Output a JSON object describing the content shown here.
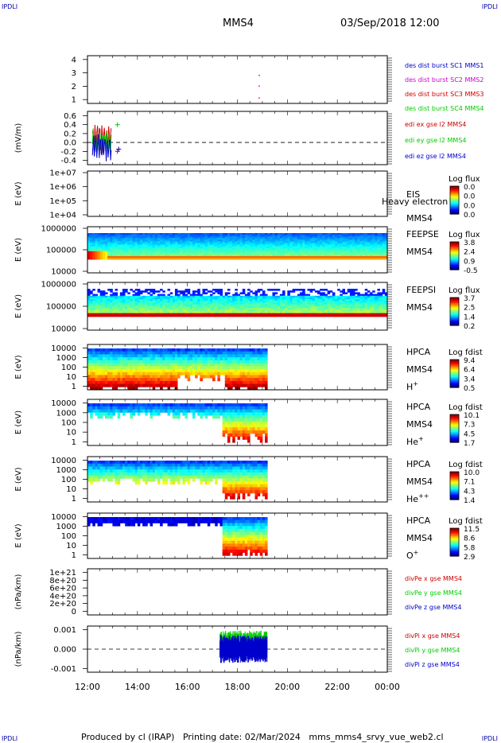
{
  "corner_left": "IPDLI",
  "corner_right": "IPDLI",
  "header": {
    "title": "MMS4",
    "datetime": "03/Sep/2018 12:00"
  },
  "footer": {
    "text": "Produced by cl (IRAP)   Printing date: 02/Mar/2024   mms_mms4_srvy_vue_web2.cl"
  },
  "chart_data": {
    "type": "multi-panel time series / spectrograms",
    "x": {
      "tick_labels": [
        "12:00",
        "14:00",
        "16:00",
        "18:00",
        "20:00",
        "22:00",
        "00:00"
      ],
      "range_hours": [
        12,
        24
      ]
    },
    "colors": {
      "red": "#cc0000",
      "green": "#00cc00",
      "blue": "#0000cc",
      "magenta": "#cc00cc"
    },
    "panels": [
      {
        "kind": "line",
        "ylabel": "",
        "yticks": [
          "4",
          "3",
          "2",
          "1"
        ],
        "ylim": [
          0.5,
          4.5
        ],
        "legend": [
          {
            "text": "des dist burst SC1 MMS1",
            "color": "#0000cc"
          },
          {
            "text": "des dist burst SC2 MMS2",
            "color": "#cc00cc"
          },
          {
            "text": "des dist burst SC3 MMS3",
            "color": "#cc0000"
          },
          {
            "text": "des dist burst SC4 MMS4",
            "color": "#00cc00"
          }
        ]
      },
      {
        "kind": "line",
        "ylabel": "(mV/m)",
        "yticks": [
          "0.6",
          "0.4",
          "0.2",
          "0.0",
          "-0.2",
          "-0.4"
        ],
        "ylim": [
          -0.5,
          0.7
        ],
        "zero_line": true,
        "legend": [
          {
            "text": "edi ex gse l2 MMS4",
            "color": "#cc0000"
          },
          {
            "text": "edi ey gse l2 MMS4",
            "color": "#00cc00"
          },
          {
            "text": "edi ez gse l2 MMS4",
            "color": "#0000cc"
          }
        ]
      },
      {
        "kind": "spectrogram",
        "ylabel": "E (eV)",
        "yticks": [
          "1e+07",
          "1e+06",
          "1e+05",
          "1e+04"
        ],
        "labels": [
          "EIS",
          "MMS4"
        ],
        "overlay": "Heavy electron to",
        "colorbar": {
          "title": "Log flux",
          "ticks": [
            "0.0",
            "0.0",
            "0.0",
            "0.0"
          ]
        }
      },
      {
        "kind": "spectrogram",
        "ylabel": "E (eV)",
        "yticks": [
          "1000000",
          "100000",
          "10000"
        ],
        "labels": [
          "FEEPSE",
          "MMS4"
        ],
        "colorbar": {
          "title": "Log flux",
          "ticks": [
            "3.8",
            "2.4",
            "0.9",
            "-0.5"
          ]
        }
      },
      {
        "kind": "spectrogram",
        "ylabel": "E (eV)",
        "yticks": [
          "1000000",
          "100000",
          "10000"
        ],
        "labels": [
          "FEEPSI",
          "MMS4"
        ],
        "colorbar": {
          "title": "Log flux",
          "ticks": [
            "3.7",
            "2.5",
            "1.4",
            "0.2"
          ]
        }
      },
      {
        "kind": "spectrogram",
        "ylabel": "E (eV)",
        "yticks": [
          "10000",
          "1000",
          "100",
          "10",
          "1"
        ],
        "labels": [
          "HPCA",
          "MMS4",
          "H"
        ],
        "sup": "+",
        "colorbar": {
          "title": "Log fdist",
          "ticks": [
            "9.4",
            "6.4",
            "3.4",
            "0.5"
          ]
        }
      },
      {
        "kind": "spectrogram",
        "ylabel": "E (eV)",
        "yticks": [
          "10000",
          "1000",
          "100",
          "10",
          "1"
        ],
        "labels": [
          "HPCA",
          "MMS4",
          "He"
        ],
        "sup": "+",
        "colorbar": {
          "title": "Log fdist",
          "ticks": [
            "10.1",
            "7.3",
            "4.5",
            "1.7"
          ]
        }
      },
      {
        "kind": "spectrogram",
        "ylabel": "E (eV)",
        "yticks": [
          "10000",
          "1000",
          "100",
          "10",
          "1"
        ],
        "labels": [
          "HPCA",
          "MMS4",
          "He"
        ],
        "sup": "++",
        "colorbar": {
          "title": "Log fdist",
          "ticks": [
            "10.0",
            "7.1",
            "4.3",
            "1.4"
          ]
        }
      },
      {
        "kind": "spectrogram",
        "ylabel": "E (eV)",
        "yticks": [
          "10000",
          "1000",
          "100",
          "10",
          "1"
        ],
        "labels": [
          "HPCA",
          "MMS4",
          "O"
        ],
        "sup": "+",
        "colorbar": {
          "title": "Log fdist",
          "ticks": [
            "11.5",
            "8.6",
            "5.8",
            "2.9"
          ]
        }
      },
      {
        "kind": "line",
        "ylabel": "(nPa/km)",
        "yticks": [
          "1e+21",
          "8e+20",
          "6e+20",
          "4e+20",
          "2e+20",
          "0"
        ],
        "ylim": [
          0,
          1e+21
        ],
        "zero_line": true,
        "legend": [
          {
            "text": "divPe x gse MMS4",
            "color": "#cc0000"
          },
          {
            "text": "divPe y gse MMS4",
            "color": "#00cc00"
          },
          {
            "text": "divPe z gse MMS4",
            "color": "#0000cc"
          }
        ]
      },
      {
        "kind": "line",
        "ylabel": "(nPa/km)",
        "yticks": [
          "0.001",
          "0.000",
          "-0.001"
        ],
        "ylim": [
          -0.0015,
          0.0015
        ],
        "zero_line": true,
        "legend": [
          {
            "text": "divPi x gse MMS4",
            "color": "#cc0000"
          },
          {
            "text": "divPi y gse MMS4",
            "color": "#00cc00"
          },
          {
            "text": "divPi z gse MMS4",
            "color": "#0000cc"
          }
        ]
      }
    ]
  }
}
